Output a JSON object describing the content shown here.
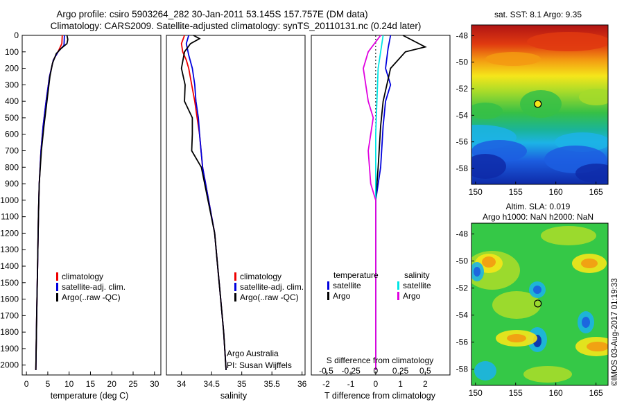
{
  "header": {
    "line1": "Argo profile: csiro 5903264_282 30-Jan-2011 53.145S 157.757E (DM data)",
    "line2": "Climatology: CARS2009. Satellite-adjusted climatology: synTS_20110131.nc (0.24d later)"
  },
  "colors": {
    "climatology": "#ee0000",
    "satellite": "#0000dd",
    "argo": "#000000",
    "s_satellite": "#00e5e5",
    "s_argo": "#e000e0"
  },
  "chart_data": [
    {
      "id": "temperature",
      "type": "line",
      "xlabel": "temperature (deg C)",
      "ylabel": "",
      "xlim": [
        -1,
        31.5
      ],
      "ylim": [
        2060,
        0
      ],
      "xticks": [
        0,
        5,
        10,
        15,
        20,
        25,
        30
      ],
      "yticks": [
        0,
        100,
        200,
        300,
        400,
        500,
        600,
        700,
        800,
        900,
        1000,
        1100,
        1200,
        1300,
        1400,
        1500,
        1600,
        1700,
        1800,
        1900,
        2000
      ],
      "legend": {
        "position": "lower-middle",
        "entries": [
          "climatology",
          "satellite-adj. clim.",
          "Argo(..raw -QC)"
        ]
      },
      "series": [
        {
          "name": "climatology",
          "color": "#ee0000",
          "points": [
            [
              8.4,
              0
            ],
            [
              8.3,
              50
            ],
            [
              7.4,
              100
            ],
            [
              6.3,
              150
            ],
            [
              5.4,
              250
            ],
            [
              4.6,
              400
            ],
            [
              3.9,
              550
            ],
            [
              3.4,
              700
            ],
            [
              3.0,
              900
            ],
            [
              2.8,
              1100
            ],
            [
              2.6,
              1400
            ],
            [
              2.4,
              1700
            ],
            [
              2.2,
              2030
            ]
          ]
        },
        {
          "name": "satellite-adj. clim.",
          "color": "#0000dd",
          "points": [
            [
              8.9,
              0
            ],
            [
              8.8,
              60
            ],
            [
              7.4,
              100
            ],
            [
              6.3,
              150
            ],
            [
              5.4,
              250
            ],
            [
              4.6,
              400
            ],
            [
              3.9,
              550
            ],
            [
              3.4,
              700
            ],
            [
              3.0,
              900
            ],
            [
              2.8,
              1100
            ],
            [
              2.6,
              1400
            ],
            [
              2.4,
              1700
            ],
            [
              2.2,
              2030
            ]
          ]
        },
        {
          "name": "Argo(..raw -QC)",
          "color": "#000000",
          "points": [
            [
              9.5,
              0
            ],
            [
              9.7,
              25
            ],
            [
              9.5,
              50
            ],
            [
              8.1,
              80
            ],
            [
              7.0,
              110
            ],
            [
              6.1,
              170
            ],
            [
              5.5,
              250
            ],
            [
              4.8,
              400
            ],
            [
              4.1,
              550
            ],
            [
              3.5,
              700
            ],
            [
              3.0,
              900
            ],
            [
              2.8,
              1100
            ],
            [
              2.6,
              1400
            ],
            [
              2.4,
              1700
            ],
            [
              2.2,
              2030
            ]
          ]
        }
      ]
    },
    {
      "id": "salinity",
      "type": "line",
      "xlabel": "salinity",
      "ylabel": "",
      "xlim": [
        33.75,
        36.05
      ],
      "ylim": [
        2060,
        0
      ],
      "xticks": [
        34,
        34.5,
        35,
        35.5,
        36
      ],
      "legend": {
        "position": "lower-middle",
        "entries": [
          "climatology",
          "satellite-adj. clim.",
          "Argo(..raw -QC)"
        ]
      },
      "annotations": [
        "Argo Australia",
        "PI: Susan Wijffels"
      ],
      "series": [
        {
          "name": "climatology",
          "color": "#ee0000",
          "points": [
            [
              34.05,
              0
            ],
            [
              34.0,
              50
            ],
            [
              34.02,
              100
            ],
            [
              34.08,
              150
            ],
            [
              34.12,
              200
            ],
            [
              34.17,
              300
            ],
            [
              34.22,
              400
            ],
            [
              34.26,
              500
            ],
            [
              34.3,
              600
            ],
            [
              34.35,
              800
            ],
            [
              34.45,
              1000
            ],
            [
              34.55,
              1200
            ],
            [
              34.6,
              1400
            ],
            [
              34.65,
              1600
            ],
            [
              34.7,
              1800
            ],
            [
              34.74,
              2030
            ]
          ]
        },
        {
          "name": "satellite-adj. clim.",
          "color": "#0000dd",
          "points": [
            [
              34.12,
              0
            ],
            [
              34.08,
              50
            ],
            [
              34.12,
              120
            ],
            [
              34.18,
              200
            ],
            [
              34.22,
              300
            ],
            [
              34.24,
              400
            ],
            [
              34.28,
              500
            ],
            [
              34.3,
              600
            ],
            [
              34.35,
              800
            ],
            [
              34.45,
              1000
            ],
            [
              34.55,
              1200
            ],
            [
              34.6,
              1400
            ],
            [
              34.65,
              1600
            ],
            [
              34.7,
              1800
            ],
            [
              34.74,
              2030
            ]
          ]
        },
        {
          "name": "Argo(..raw -QC)",
          "color": "#000000",
          "points": [
            [
              34.2,
              0
            ],
            [
              34.3,
              20
            ],
            [
              34.15,
              50
            ],
            [
              34.05,
              100
            ],
            [
              34.0,
              200
            ],
            [
              34.06,
              300
            ],
            [
              34.05,
              400
            ],
            [
              34.18,
              500
            ],
            [
              34.18,
              600
            ],
            [
              34.17,
              700
            ],
            [
              34.33,
              800
            ],
            [
              34.44,
              1000
            ],
            [
              34.55,
              1200
            ],
            [
              34.6,
              1400
            ],
            [
              34.65,
              1600
            ],
            [
              34.7,
              1800
            ],
            [
              34.74,
              2030
            ]
          ]
        }
      ]
    },
    {
      "id": "differences",
      "type": "line",
      "xlabel": "T difference from climatology",
      "xlabel2": "S difference from climatology",
      "xlim": [
        -2.6,
        3.0
      ],
      "ylim": [
        2060,
        0
      ],
      "xticks": [
        -2,
        -1,
        0,
        1,
        2
      ],
      "xticks_top": [
        -0.5,
        -0.25,
        0,
        0.25,
        0.5
      ],
      "legend": {
        "position": "lower-middle",
        "headers": [
          "temperature",
          "salinity"
        ],
        "entries": [
          "satellite",
          "Argo",
          "satellite",
          "Argo"
        ]
      },
      "series": [
        {
          "name": "temperature satellite",
          "color": "#0000dd",
          "points": [
            [
              0.6,
              0
            ],
            [
              0.5,
              80
            ],
            [
              0.4,
              200
            ],
            [
              0.6,
              300
            ],
            [
              0.4,
              400
            ],
            [
              0.3,
              550
            ],
            [
              0.2,
              800
            ],
            [
              0.0,
              1000
            ],
            [
              0.0,
              2030
            ]
          ]
        },
        {
          "name": "temperature Argo",
          "color": "#000000",
          "points": [
            [
              1.1,
              0
            ],
            [
              2.0,
              70
            ],
            [
              1.2,
              100
            ],
            [
              0.6,
              200
            ],
            [
              0.3,
              400
            ],
            [
              0.2,
              550
            ],
            [
              0.1,
              800
            ],
            [
              0.0,
              1000
            ],
            [
              0.0,
              2030
            ]
          ]
        },
        {
          "name": "salinity satellite",
          "color": "#00e5e5",
          "points": [
            [
              0.3,
              0
            ],
            [
              0.2,
              100
            ],
            [
              0.1,
              200
            ],
            [
              0.05,
              400
            ],
            [
              0.0,
              600
            ],
            [
              0.0,
              2030
            ]
          ]
        },
        {
          "name": "salinity Argo",
          "color": "#e000e0",
          "points": [
            [
              0.2,
              0
            ],
            [
              -0.3,
              100
            ],
            [
              -0.5,
              200
            ],
            [
              -0.3,
              400
            ],
            [
              -0.1,
              500
            ],
            [
              -0.3,
              700
            ],
            [
              -0.2,
              900
            ],
            [
              0.0,
              1000
            ],
            [
              0.0,
              2030
            ]
          ]
        }
      ]
    },
    {
      "id": "sst-map",
      "type": "heatmap",
      "title": "sat. SST: 8.1 Argo: 9.35",
      "xticks": [
        150,
        155,
        160,
        165
      ],
      "yticks": [
        -48,
        -50,
        -52,
        -54,
        -56,
        -58
      ],
      "xlim": [
        149.5,
        166.5
      ],
      "ylim": [
        -59.2,
        -47.2
      ],
      "marker": {
        "lon": 157.757,
        "lat": -53.145
      }
    },
    {
      "id": "sla-map",
      "type": "heatmap",
      "title": "Altim. SLA: 0.019",
      "subtitle": "Argo h1000: NaN h2000: NaN",
      "xticks": [
        150,
        155,
        160,
        165
      ],
      "yticks": [
        -48,
        -50,
        -52,
        -54,
        -56,
        -58
      ],
      "xlim": [
        149.5,
        166.5
      ],
      "ylim": [
        -59.2,
        -47.2
      ],
      "marker": {
        "lon": 157.757,
        "lat": -53.145
      }
    }
  ],
  "footer": {
    "stamp": "©IMOS 03-Aug-2017 01:19:33"
  }
}
